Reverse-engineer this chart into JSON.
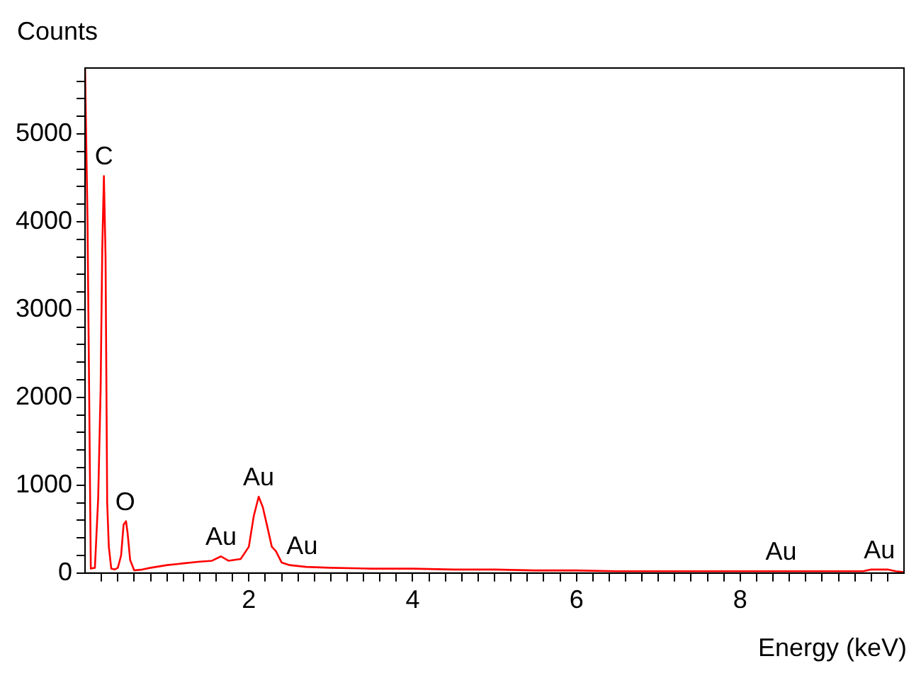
{
  "chart_data": {
    "type": "line",
    "xlabel": "Energy (keV)",
    "ylabel": "Counts",
    "xlim": [
      0,
      10
    ],
    "ylim": [
      0,
      5750
    ],
    "xticks": [
      {
        "value": 0.2,
        "label": null
      },
      {
        "value": 0.4,
        "label": null
      },
      {
        "value": 0.6,
        "label": null
      },
      {
        "value": 0.8,
        "label": null
      },
      {
        "value": 1,
        "label": null
      },
      {
        "value": 1.2,
        "label": null
      },
      {
        "value": 1.4,
        "label": null
      },
      {
        "value": 1.6,
        "label": null
      },
      {
        "value": 1.8,
        "label": null
      },
      2,
      {
        "value": 2.2,
        "label": null
      },
      {
        "value": 2.4,
        "label": null
      },
      {
        "value": 2.6,
        "label": null
      },
      {
        "value": 2.8,
        "label": null
      },
      {
        "value": 3,
        "label": null
      },
      {
        "value": 3.2,
        "label": null
      },
      {
        "value": 3.4,
        "label": null
      },
      {
        "value": 3.6,
        "label": null
      },
      {
        "value": 3.8,
        "label": null
      },
      4,
      {
        "value": 4.2,
        "label": null
      },
      {
        "value": 4.4,
        "label": null
      },
      {
        "value": 4.6,
        "label": null
      },
      {
        "value": 4.8,
        "label": null
      },
      {
        "value": 5,
        "label": null
      },
      {
        "value": 5.2,
        "label": null
      },
      {
        "value": 5.4,
        "label": null
      },
      {
        "value": 5.6,
        "label": null
      },
      {
        "value": 5.8,
        "label": null
      },
      6,
      {
        "value": 6.2,
        "label": null
      },
      {
        "value": 6.4,
        "label": null
      },
      {
        "value": 6.6,
        "label": null
      },
      {
        "value": 6.8,
        "label": null
      },
      {
        "value": 7,
        "label": null
      },
      {
        "value": 7.2,
        "label": null
      },
      {
        "value": 7.4,
        "label": null
      },
      {
        "value": 7.6,
        "label": null
      },
      {
        "value": 7.8,
        "label": null
      },
      8,
      {
        "value": 8.2,
        "label": null
      },
      {
        "value": 8.4,
        "label": null
      },
      {
        "value": 8.6,
        "label": null
      },
      {
        "value": 8.8,
        "label": null
      },
      {
        "value": 9,
        "label": null
      },
      {
        "value": 9.2,
        "label": null
      },
      {
        "value": 9.4,
        "label": null
      },
      {
        "value": 9.6,
        "label": null
      },
      {
        "value": 9.8,
        "label": null
      }
    ],
    "yticks": [
      0,
      {
        "value": 200,
        "label": null
      },
      {
        "value": 400,
        "label": null
      },
      {
        "value": 600,
        "label": null
      },
      {
        "value": 800,
        "label": null
      },
      1000,
      {
        "value": 1200,
        "label": null
      },
      {
        "value": 1400,
        "label": null
      },
      {
        "value": 1600,
        "label": null
      },
      {
        "value": 1800,
        "label": null
      },
      2000,
      {
        "value": 2200,
        "label": null
      },
      {
        "value": 2400,
        "label": null
      },
      {
        "value": 2600,
        "label": null
      },
      {
        "value": 2800,
        "label": null
      },
      3000,
      {
        "value": 3200,
        "label": null
      },
      {
        "value": 3400,
        "label": null
      },
      {
        "value": 3600,
        "label": null
      },
      {
        "value": 3800,
        "label": null
      },
      4000,
      {
        "value": 4200,
        "label": null
      },
      {
        "value": 4400,
        "label": null
      },
      {
        "value": 4600,
        "label": null
      },
      {
        "value": 4800,
        "label": null
      },
      5000,
      {
        "value": 5200,
        "label": null
      },
      {
        "value": 5400,
        "label": null
      },
      {
        "value": 5600,
        "label": null
      }
    ],
    "marker": "none",
    "line_style": "solid",
    "series": [
      {
        "color": "#ff0000",
        "x": [
          0,
          0.03,
          0.07,
          0.12,
          0.16,
          0.19,
          0.21,
          0.23,
          0.25,
          0.27,
          0.29,
          0.32,
          0.36,
          0.4,
          0.44,
          0.47,
          0.5,
          0.52,
          0.55,
          0.6,
          0.7,
          0.8,
          1.0,
          1.2,
          1.4,
          1.55,
          1.66,
          1.75,
          1.9,
          2.0,
          2.06,
          2.12,
          2.17,
          2.22,
          2.28,
          2.33,
          2.4,
          2.5,
          2.7,
          3.0,
          3.5,
          4.0,
          4.5,
          5.0,
          5.5,
          6.0,
          6.5,
          7.0,
          7.5,
          8.0,
          8.5,
          9.0,
          9.5,
          9.6,
          9.7,
          9.8,
          9.9,
          10
        ],
        "values": [
          5750,
          4000,
          50,
          60,
          850,
          2100,
          3700,
          4520,
          3600,
          800,
          300,
          50,
          40,
          60,
          200,
          550,
          590,
          450,
          150,
          30,
          40,
          60,
          90,
          110,
          130,
          140,
          190,
          140,
          160,
          300,
          650,
          870,
          750,
          550,
          300,
          250,
          120,
          90,
          70,
          60,
          50,
          50,
          40,
          40,
          30,
          30,
          20,
          20,
          20,
          20,
          20,
          20,
          20,
          40,
          40,
          40,
          20,
          10
        ]
      }
    ],
    "annotations": [
      {
        "text": "C",
        "x": 0.23,
        "y": 4520
      },
      {
        "text": "O",
        "x": 0.49,
        "y": 590
      },
      {
        "text": "Au",
        "x": 1.66,
        "y": 190
      },
      {
        "text": "Au",
        "x": 2.12,
        "y": 870
      },
      {
        "text": "Au",
        "x": 2.65,
        "y": 90
      },
      {
        "text": "Au",
        "x": 8.5,
        "y": 20
      },
      {
        "text": "Au",
        "x": 9.7,
        "y": 40
      }
    ]
  }
}
